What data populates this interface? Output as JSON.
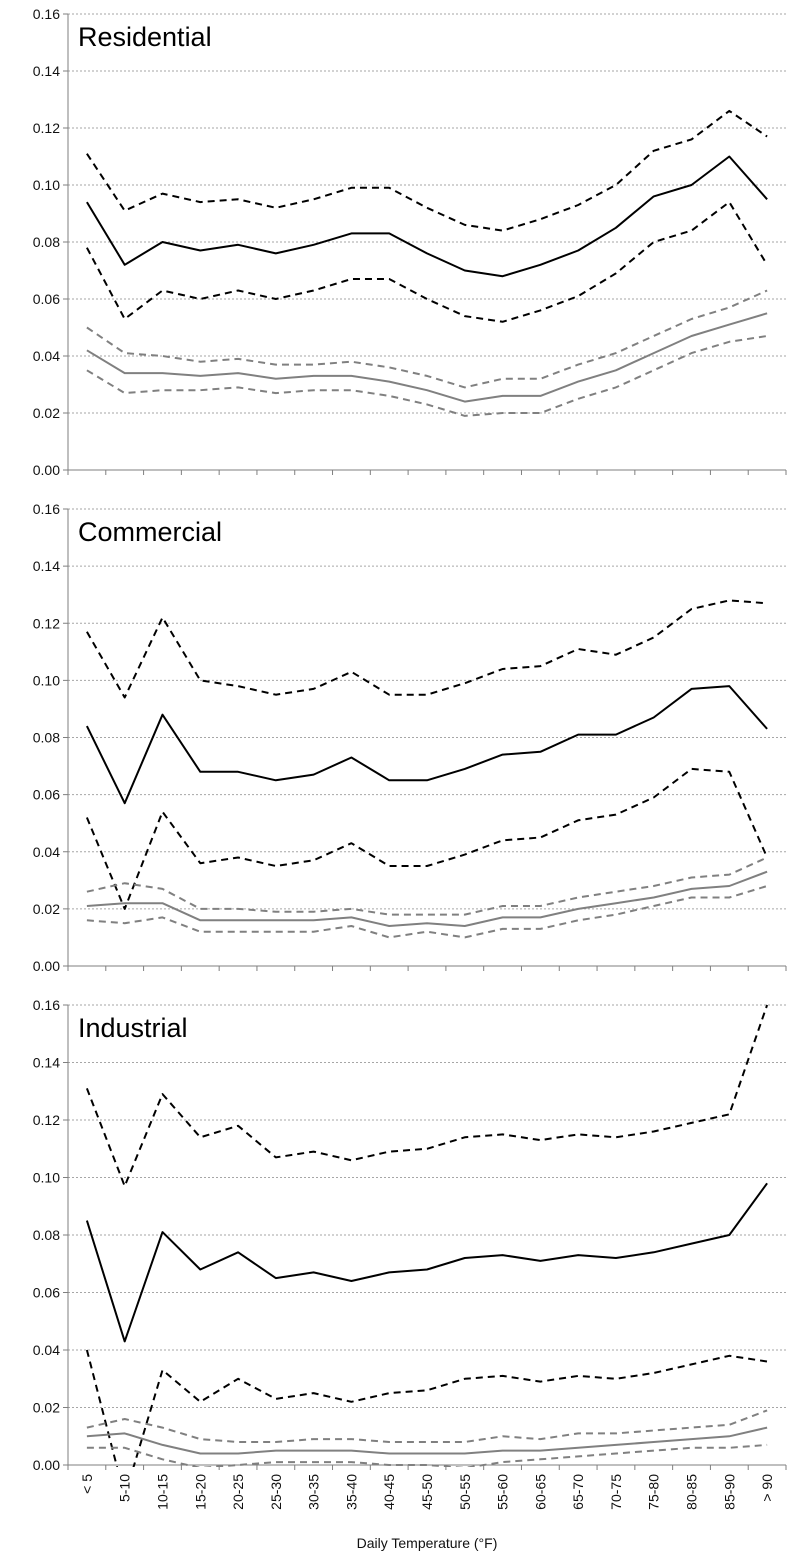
{
  "chart_data": {
    "type": "line",
    "xlabel": "Daily Temperature (°F)",
    "categories": [
      "< 5",
      "5-10",
      "10-15",
      "15-20",
      "20-25",
      "25-30",
      "30-35",
      "35-40",
      "40-45",
      "45-50",
      "50-55",
      "55-60",
      "60-65",
      "65-70",
      "70-75",
      "75-80",
      "80-85",
      "85-90",
      "> 90"
    ],
    "ylim": [
      0,
      0.16
    ],
    "yticks": [
      "0.00",
      "0.02",
      "0.04",
      "0.06",
      "0.08",
      "0.10",
      "0.12",
      "0.14",
      "0.16"
    ],
    "grid": true,
    "colors": {
      "black": "#000000",
      "gray": "#808080"
    },
    "panels": [
      {
        "title": "Residential",
        "series": [
          {
            "color": "black",
            "style": "solid",
            "values": [
              0.094,
              0.072,
              0.08,
              0.077,
              0.079,
              0.076,
              0.079,
              0.083,
              0.083,
              0.076,
              0.07,
              0.068,
              0.072,
              0.077,
              0.085,
              0.096,
              0.1,
              0.11,
              0.095
            ]
          },
          {
            "color": "black",
            "style": "dashed",
            "values": [
              0.111,
              0.091,
              0.097,
              0.094,
              0.095,
              0.092,
              0.095,
              0.099,
              0.099,
              0.092,
              0.086,
              0.084,
              0.088,
              0.093,
              0.1,
              0.112,
              0.116,
              0.126,
              0.117
            ]
          },
          {
            "color": "black",
            "style": "dashed",
            "values": [
              0.078,
              0.053,
              0.063,
              0.06,
              0.063,
              0.06,
              0.063,
              0.067,
              0.067,
              0.06,
              0.054,
              0.052,
              0.056,
              0.061,
              0.069,
              0.08,
              0.084,
              0.094,
              0.072
            ]
          },
          {
            "color": "gray",
            "style": "solid",
            "values": [
              0.042,
              0.034,
              0.034,
              0.033,
              0.034,
              0.032,
              0.033,
              0.033,
              0.031,
              0.028,
              0.024,
              0.026,
              0.026,
              0.031,
              0.035,
              0.041,
              0.047,
              0.051,
              0.055
            ]
          },
          {
            "color": "gray",
            "style": "dashed",
            "values": [
              0.05,
              0.041,
              0.04,
              0.038,
              0.039,
              0.037,
              0.037,
              0.038,
              0.036,
              0.033,
              0.029,
              0.032,
              0.032,
              0.037,
              0.041,
              0.047,
              0.053,
              0.057,
              0.063
            ]
          },
          {
            "color": "gray",
            "style": "dashed",
            "values": [
              0.035,
              0.027,
              0.028,
              0.028,
              0.029,
              0.027,
              0.028,
              0.028,
              0.026,
              0.023,
              0.019,
              0.02,
              0.02,
              0.025,
              0.029,
              0.035,
              0.041,
              0.045,
              0.047
            ]
          }
        ]
      },
      {
        "title": "Commercial",
        "series": [
          {
            "color": "black",
            "style": "solid",
            "values": [
              0.084,
              0.057,
              0.088,
              0.068,
              0.068,
              0.065,
              0.067,
              0.073,
              0.065,
              0.065,
              0.069,
              0.074,
              0.075,
              0.081,
              0.081,
              0.087,
              0.097,
              0.098,
              0.083
            ]
          },
          {
            "color": "black",
            "style": "dashed",
            "values": [
              0.117,
              0.094,
              0.122,
              0.1,
              0.098,
              0.095,
              0.097,
              0.103,
              0.095,
              0.095,
              0.099,
              0.104,
              0.105,
              0.111,
              0.109,
              0.115,
              0.125,
              0.128,
              0.127
            ]
          },
          {
            "color": "black",
            "style": "dashed",
            "values": [
              0.052,
              0.02,
              0.054,
              0.036,
              0.038,
              0.035,
              0.037,
              0.043,
              0.035,
              0.035,
              0.039,
              0.044,
              0.045,
              0.051,
              0.053,
              0.059,
              0.069,
              0.068,
              0.038
            ]
          },
          {
            "color": "gray",
            "style": "solid",
            "values": [
              0.021,
              0.022,
              0.022,
              0.016,
              0.016,
              0.016,
              0.016,
              0.017,
              0.014,
              0.015,
              0.014,
              0.017,
              0.017,
              0.02,
              0.022,
              0.024,
              0.027,
              0.028,
              0.033
            ]
          },
          {
            "color": "gray",
            "style": "dashed",
            "values": [
              0.026,
              0.029,
              0.027,
              0.02,
              0.02,
              0.019,
              0.019,
              0.02,
              0.018,
              0.018,
              0.018,
              0.021,
              0.021,
              0.024,
              0.026,
              0.028,
              0.031,
              0.032,
              0.038
            ]
          },
          {
            "color": "gray",
            "style": "dashed",
            "values": [
              0.016,
              0.015,
              0.017,
              0.012,
              0.012,
              0.012,
              0.012,
              0.014,
              0.01,
              0.012,
              0.01,
              0.013,
              0.013,
              0.016,
              0.018,
              0.021,
              0.024,
              0.024,
              0.028
            ]
          }
        ]
      },
      {
        "title": "Industrial",
        "series": [
          {
            "color": "black",
            "style": "solid",
            "values": [
              0.085,
              0.043,
              0.081,
              0.068,
              0.074,
              0.065,
              0.067,
              0.064,
              0.067,
              0.068,
              0.072,
              0.073,
              0.071,
              0.073,
              0.072,
              0.074,
              0.077,
              0.08,
              0.098
            ]
          },
          {
            "color": "black",
            "style": "dashed",
            "values": [
              0.131,
              0.097,
              0.129,
              0.114,
              0.118,
              0.107,
              0.109,
              0.106,
              0.109,
              0.11,
              0.114,
              0.115,
              0.113,
              0.115,
              0.114,
              0.116,
              0.119,
              0.122,
              0.16
            ]
          },
          {
            "color": "black",
            "style": "dashed",
            "values": [
              0.04,
              -0.011,
              0.033,
              0.022,
              0.03,
              0.023,
              0.025,
              0.022,
              0.025,
              0.026,
              0.03,
              0.031,
              0.029,
              0.031,
              0.03,
              0.032,
              0.035,
              0.038,
              0.036
            ]
          },
          {
            "color": "gray",
            "style": "solid",
            "values": [
              0.01,
              0.011,
              0.007,
              0.004,
              0.004,
              0.005,
              0.005,
              0.005,
              0.004,
              0.004,
              0.004,
              0.005,
              0.005,
              0.006,
              0.007,
              0.008,
              0.009,
              0.01,
              0.013
            ]
          },
          {
            "color": "gray",
            "style": "dashed",
            "values": [
              0.013,
              0.016,
              0.013,
              0.009,
              0.008,
              0.008,
              0.009,
              0.009,
              0.008,
              0.008,
              0.008,
              0.01,
              0.009,
              0.011,
              0.011,
              0.012,
              0.013,
              0.014,
              0.019
            ]
          },
          {
            "color": "gray",
            "style": "dashed",
            "values": [
              0.006,
              0.006,
              0.002,
              -0.001,
              0.0,
              0.001,
              0.001,
              0.001,
              0.0,
              0.0,
              -0.001,
              0.001,
              0.002,
              0.003,
              0.004,
              0.005,
              0.006,
              0.006,
              0.007
            ]
          }
        ]
      }
    ]
  }
}
